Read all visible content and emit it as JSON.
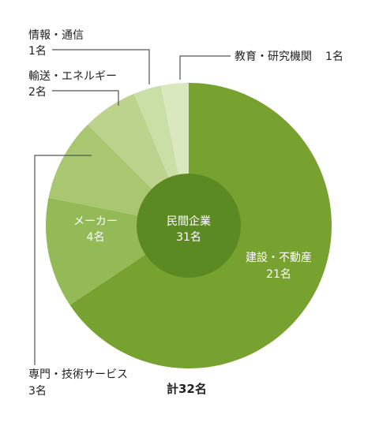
{
  "chart_data": {
    "type": "pie",
    "slices": [
      {
        "label": "建設・不動産",
        "value": 21,
        "count_label": "21名",
        "color": "#78a22f"
      },
      {
        "label": "メーカー",
        "value": 4,
        "count_label": "4名",
        "color": "#94b957"
      },
      {
        "label": "専門・技術サービス",
        "value": 3,
        "count_label": "3名",
        "color": "#a9c671"
      },
      {
        "label": "輸送・エネルギー",
        "value": 2,
        "count_label": "2名",
        "color": "#bcd38e"
      },
      {
        "label": "情報・通信",
        "value": 1,
        "count_label": "1名",
        "color": "#cadfa5"
      },
      {
        "label": "教育・研究機関",
        "value": 1,
        "count_label": "1名",
        "color": "#d9e8bf"
      }
    ],
    "center": {
      "title": "民間企業",
      "value_label": "31名",
      "value": 31,
      "color": "#5b8a23"
    },
    "total_label": "計32名",
    "total": 32
  }
}
